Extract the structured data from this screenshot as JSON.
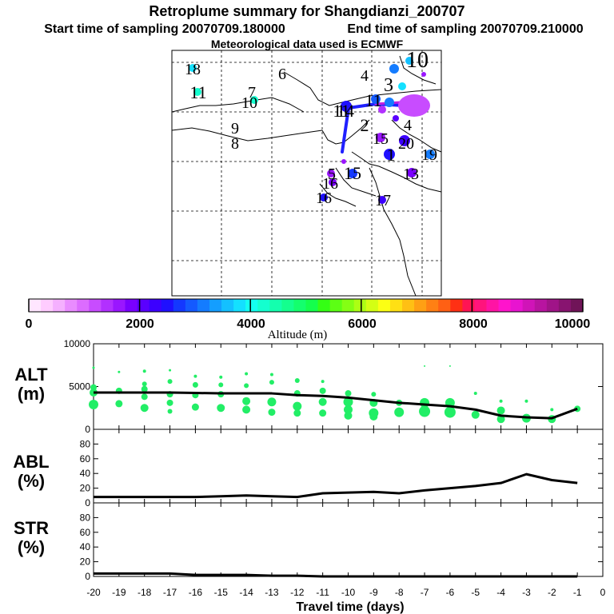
{
  "header": {
    "title": "Retroplume summary for Shangdianzi_200707",
    "start_time": "Start time of sampling 20070709.180000",
    "end_time": "End time of sampling 20070709.210000",
    "met_data": "Meteorological data used is ECMWF"
  },
  "map": {
    "day_labels": [
      "18",
      "6",
      "4",
      "10",
      "11",
      "7",
      "10",
      "3",
      "11",
      "14",
      "11",
      "2",
      "9",
      "8",
      "4",
      "20",
      "15",
      "1",
      "19",
      "5",
      "16",
      "15",
      "13",
      "16",
      "17"
    ]
  },
  "colorbar": {
    "title": "Altitude (m)",
    "tick_labels": [
      "0",
      "2000",
      "4000",
      "6000",
      "8000",
      "10000"
    ],
    "range": [
      0,
      10000
    ],
    "colors": [
      "#ffe6ff",
      "#ffccff",
      "#f5b0ff",
      "#e98cff",
      "#dc6cff",
      "#c84cff",
      "#b230ff",
      "#9a16ff",
      "#7a00ff",
      "#5a00ff",
      "#3c00ff",
      "#1f10ff",
      "#1438ff",
      "#145aff",
      "#147cff",
      "#149eff",
      "#14c0ff",
      "#14e0ff",
      "#14fff0",
      "#14ffcf",
      "#14ffae",
      "#14ff8e",
      "#14ff6d",
      "#14ff4c",
      "#34ff14",
      "#5cff14",
      "#84ff14",
      "#acff14",
      "#d4ff14",
      "#fcff14",
      "#ffe014",
      "#ffc014",
      "#ffa014",
      "#ff8014",
      "#ff6014",
      "#ff3014",
      "#ff1454",
      "#ff147c",
      "#ff14a4",
      "#ff14cc",
      "#e814d0",
      "#d014b8",
      "#b814a0",
      "#a01488",
      "#881470",
      "#701458"
    ]
  },
  "chart_data": [
    {
      "type": "line",
      "panel": "ALT",
      "ylabel_line1": "ALT",
      "ylabel_line2": "(m)",
      "ylim": [
        0,
        10000
      ],
      "yticks": [
        "0",
        "5000",
        "10000"
      ],
      "ytick_values": [
        0,
        5000,
        10000
      ],
      "x": [
        -20,
        -19,
        -18,
        -17,
        -16,
        -15,
        -14,
        -13,
        -12,
        -11,
        -10,
        -9,
        -8,
        -7,
        -6,
        -5,
        -4,
        -3,
        -2,
        -1
      ],
      "series": [
        {
          "name": "mean altitude",
          "values": [
            4300,
            4300,
            4300,
            4300,
            4250,
            4200,
            4200,
            4200,
            4000,
            3900,
            3700,
            3400,
            3100,
            2900,
            2700,
            2300,
            1600,
            1400,
            1300,
            2400
          ]
        }
      ],
      "scatter": {
        "name": "altitude distribution",
        "x": [
          -20,
          -20,
          -20,
          -20,
          -19,
          -19,
          -19,
          -18,
          -18,
          -18,
          -18,
          -18,
          -17,
          -17,
          -17,
          -17,
          -17,
          -16,
          -16,
          -16,
          -16,
          -15,
          -15,
          -15,
          -15,
          -14,
          -14,
          -14,
          -14,
          -13,
          -13,
          -13,
          -13,
          -12,
          -12,
          -12,
          -12,
          -11,
          -11,
          -11,
          -11,
          -10,
          -10,
          -10,
          -10,
          -9,
          -9,
          -9,
          -9,
          -8,
          -8,
          -7,
          -7,
          -7,
          -6,
          -6,
          -6,
          -5,
          -5,
          -4,
          -4,
          -4,
          -3,
          -3,
          -2,
          -2,
          -1
        ],
        "y": [
          7200,
          4900,
          4300,
          2900,
          6700,
          4500,
          3000,
          6800,
          5300,
          4700,
          3800,
          2500,
          6900,
          5600,
          4100,
          3100,
          2100,
          6200,
          5200,
          4000,
          2600,
          6100,
          5200,
          4100,
          2500,
          6500,
          5100,
          3300,
          2300,
          6400,
          5500,
          3200,
          2000,
          5700,
          4200,
          2700,
          1900,
          5600,
          4500,
          3200,
          1900,
          4200,
          3200,
          2300,
          1600,
          4100,
          3100,
          1900,
          1500,
          3100,
          2000,
          7400,
          3100,
          2100,
          7400,
          3100,
          2000,
          4200,
          1700,
          3300,
          2200,
          1200,
          3300,
          1300,
          2300,
          1200,
          2400
        ],
        "sizes": [
          1.5,
          4,
          5,
          6,
          1.5,
          4,
          4.5,
          2,
          3,
          4,
          4,
          5,
          1.5,
          3,
          4,
          4,
          3,
          2,
          3.5,
          4,
          4.5,
          2,
          3,
          4,
          5,
          2,
          3,
          5,
          5,
          2,
          3,
          5.5,
          4.5,
          3,
          4,
          5.5,
          4.5,
          2,
          4,
          5,
          4.5,
          4,
          6,
          5.5,
          5,
          3,
          5,
          6,
          5,
          4,
          6,
          1,
          6,
          7,
          1,
          6,
          7,
          2,
          5,
          2,
          5,
          5,
          2,
          5.5,
          2,
          5,
          4
        ]
      }
    },
    {
      "type": "line",
      "panel": "ABL",
      "ylabel_line1": "ABL",
      "ylabel_line2": "(%)",
      "ylim": [
        0,
        100
      ],
      "yticks": [
        "0",
        "20",
        "40",
        "60",
        "80"
      ],
      "ytick_values": [
        0,
        20,
        40,
        60,
        80
      ],
      "x": [
        -20,
        -19,
        -18,
        -17,
        -16,
        -15,
        -14,
        -13,
        -12,
        -11,
        -10,
        -9,
        -8,
        -7,
        -6,
        -5,
        -4,
        -3,
        -2,
        -1
      ],
      "series": [
        {
          "name": "ABL fraction",
          "values": [
            8,
            8,
            8,
            8,
            8,
            9,
            10,
            9,
            8,
            13,
            14,
            15,
            13,
            17,
            20,
            23,
            27,
            39,
            31,
            27
          ]
        }
      ]
    },
    {
      "type": "line",
      "panel": "STR",
      "ylabel_line1": "STR",
      "ylabel_line2": "(%)",
      "ylim": [
        0,
        100
      ],
      "yticks": [
        "0",
        "20",
        "40",
        "60",
        "80"
      ],
      "ytick_values": [
        0,
        20,
        40,
        60,
        80
      ],
      "x": [
        -20,
        -19,
        -18,
        -17,
        -16,
        -15,
        -14,
        -13,
        -12,
        -11,
        -10,
        -9,
        -8,
        -7,
        -6,
        -5,
        -4,
        -3,
        -2,
        -1
      ],
      "series": [
        {
          "name": "stratospheric fraction",
          "values": [
            4,
            4,
            4,
            4,
            2,
            2,
            2,
            1,
            1,
            0,
            0,
            0,
            0,
            0,
            0,
            0,
            0,
            0,
            0,
            0
          ]
        }
      ],
      "xlabel": "Travel time (days)",
      "xtick_labels": [
        "-20",
        "-19",
        "-18",
        "-17",
        "-16",
        "-15",
        "-14",
        "-13",
        "-12",
        "-11",
        "-10",
        "-9",
        "-8",
        "-7",
        "-6",
        "-5",
        "-4",
        "-3",
        "-2",
        "-1",
        "0"
      ],
      "xlim": [
        -20,
        0
      ]
    }
  ],
  "colors": {
    "line": "#000000",
    "scatter": "#22ee66",
    "path": "#2020ff"
  }
}
